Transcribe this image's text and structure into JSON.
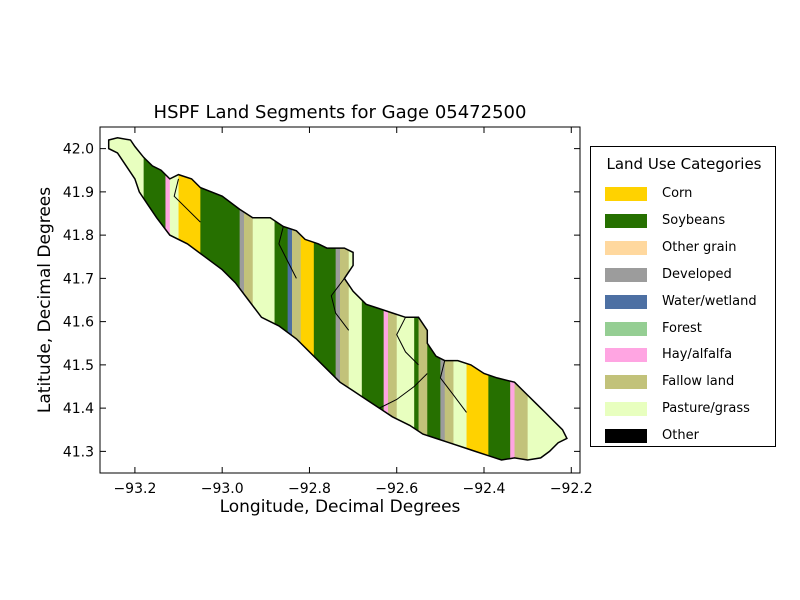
{
  "chart_data": {
    "type": "map",
    "title": "HSPF Land Segments for Gage 05472500",
    "xlabel": "Longitude, Decimal Degrees",
    "ylabel": "Latitude, Decimal Degrees",
    "xlim": [
      -93.28,
      -92.18
    ],
    "ylim": [
      41.25,
      42.05
    ],
    "x_ticks": [
      -93.2,
      -93.0,
      -92.8,
      -92.6,
      -92.4,
      -92.2
    ],
    "x_tick_labels": [
      "−93.2",
      "−93.0",
      "−92.8",
      "−92.6",
      "−92.4",
      "−92.2"
    ],
    "y_ticks": [
      41.3,
      41.4,
      41.5,
      41.6,
      41.7,
      41.8,
      41.9,
      42.0
    ],
    "y_tick_labels": [
      "41.3",
      "41.4",
      "41.5",
      "41.6",
      "41.7",
      "41.8",
      "41.9",
      "42.0"
    ],
    "legend": {
      "title": "Land Use Categories",
      "placement": "right",
      "entries": [
        {
          "label": "Corn",
          "color": "#ffd200"
        },
        {
          "label": "Soybeans",
          "color": "#267000"
        },
        {
          "label": "Other grain",
          "color": "#ffd89e"
        },
        {
          "label": "Developed",
          "color": "#9c9c9c"
        },
        {
          "label": "Water/wetland",
          "color": "#4d70a3"
        },
        {
          "label": "Forest",
          "color": "#95ce93"
        },
        {
          "label": "Hay/alfalfa",
          "color": "#ffa5e2"
        },
        {
          "label": "Fallow land",
          "color": "#c2c27a"
        },
        {
          "label": "Pasture/grass",
          "color": "#e8ffbf"
        },
        {
          "label": "Other",
          "color": "#000000"
        }
      ]
    },
    "segments": [
      {
        "category": "Pasture/grass",
        "lon": [
          -93.28,
          -93.18
        ]
      },
      {
        "category": "Soybeans",
        "lon": [
          -93.18,
          -93.13
        ]
      },
      {
        "category": "Hay/alfalfa",
        "lon": [
          -93.13,
          -93.12
        ]
      },
      {
        "category": "Pasture/grass",
        "lon": [
          -93.12,
          -93.1
        ]
      },
      {
        "category": "Corn",
        "lon": [
          -93.1,
          -93.05
        ]
      },
      {
        "category": "Soybeans",
        "lon": [
          -93.05,
          -92.96
        ]
      },
      {
        "category": "Developed",
        "lon": [
          -92.96,
          -92.95
        ]
      },
      {
        "category": "Fallow land",
        "lon": [
          -92.95,
          -92.93
        ]
      },
      {
        "category": "Pasture/grass",
        "lon": [
          -92.93,
          -92.88
        ]
      },
      {
        "category": "Soybeans",
        "lon": [
          -92.88,
          -92.85
        ]
      },
      {
        "category": "Water/wetland",
        "lon": [
          -92.85,
          -92.84
        ]
      },
      {
        "category": "Fallow land",
        "lon": [
          -92.84,
          -92.82
        ]
      },
      {
        "category": "Corn",
        "lon": [
          -92.82,
          -92.79
        ]
      },
      {
        "category": "Soybeans",
        "lon": [
          -92.79,
          -92.74
        ]
      },
      {
        "category": "Developed",
        "lon": [
          -92.74,
          -92.73
        ]
      },
      {
        "category": "Fallow land",
        "lon": [
          -92.73,
          -92.71
        ]
      },
      {
        "category": "Pasture/grass",
        "lon": [
          -92.71,
          -92.68
        ]
      },
      {
        "category": "Soybeans",
        "lon": [
          -92.68,
          -92.63
        ]
      },
      {
        "category": "Hay/alfalfa",
        "lon": [
          -92.63,
          -92.62
        ]
      },
      {
        "category": "Fallow land",
        "lon": [
          -92.62,
          -92.6
        ]
      },
      {
        "category": "Pasture/grass",
        "lon": [
          -92.6,
          -92.56
        ]
      },
      {
        "category": "Soybeans",
        "lon": [
          -92.56,
          -92.55
        ]
      },
      {
        "category": "Fallow land",
        "lon": [
          -92.55,
          -92.53
        ]
      },
      {
        "category": "Soybeans",
        "lon": [
          -92.53,
          -92.5
        ]
      },
      {
        "category": "Developed",
        "lon": [
          -92.5,
          -92.49
        ]
      },
      {
        "category": "Fallow land",
        "lon": [
          -92.49,
          -92.47
        ]
      },
      {
        "category": "Pasture/grass",
        "lon": [
          -92.47,
          -92.44
        ]
      },
      {
        "category": "Corn",
        "lon": [
          -92.44,
          -92.39
        ]
      },
      {
        "category": "Soybeans",
        "lon": [
          -92.39,
          -92.34
        ]
      },
      {
        "category": "Hay/alfalfa",
        "lon": [
          -92.34,
          -92.33
        ]
      },
      {
        "category": "Fallow land",
        "lon": [
          -92.33,
          -92.3
        ]
      },
      {
        "category": "Pasture/grass",
        "lon": [
          -92.3,
          -92.18
        ]
      }
    ],
    "outline": [
      [
        -93.26,
        42.02
      ],
      [
        -93.24,
        42.025
      ],
      [
        -93.21,
        42.02
      ],
      [
        -93.2,
        42.005
      ],
      [
        -93.18,
        41.98
      ],
      [
        -93.16,
        41.96
      ],
      [
        -93.14,
        41.95
      ],
      [
        -93.12,
        41.93
      ],
      [
        -93.1,
        41.94
      ],
      [
        -93.07,
        41.93
      ],
      [
        -93.05,
        41.91
      ],
      [
        -93.0,
        41.89
      ],
      [
        -92.96,
        41.86
      ],
      [
        -92.93,
        41.84
      ],
      [
        -92.89,
        41.84
      ],
      [
        -92.86,
        41.82
      ],
      [
        -92.83,
        41.81
      ],
      [
        -92.81,
        41.79
      ],
      [
        -92.78,
        41.78
      ],
      [
        -92.76,
        41.77
      ],
      [
        -92.72,
        41.77
      ],
      [
        -92.7,
        41.76
      ],
      [
        -92.7,
        41.73
      ],
      [
        -92.72,
        41.7
      ],
      [
        -92.7,
        41.67
      ],
      [
        -92.67,
        41.64
      ],
      [
        -92.64,
        41.63
      ],
      [
        -92.61,
        41.62
      ],
      [
        -92.58,
        41.61
      ],
      [
        -92.55,
        41.61
      ],
      [
        -92.53,
        41.58
      ],
      [
        -92.53,
        41.55
      ],
      [
        -92.51,
        41.52
      ],
      [
        -92.49,
        41.51
      ],
      [
        -92.46,
        41.51
      ],
      [
        -92.43,
        41.5
      ],
      [
        -92.4,
        41.48
      ],
      [
        -92.37,
        41.47
      ],
      [
        -92.33,
        41.46
      ],
      [
        -92.3,
        41.43
      ],
      [
        -92.28,
        41.41
      ],
      [
        -92.26,
        41.39
      ],
      [
        -92.24,
        41.37
      ],
      [
        -92.22,
        41.35
      ],
      [
        -92.21,
        41.33
      ],
      [
        -92.23,
        41.32
      ],
      [
        -92.25,
        41.3
      ],
      [
        -92.27,
        41.285
      ],
      [
        -92.3,
        41.28
      ],
      [
        -92.33,
        41.285
      ],
      [
        -92.36,
        41.28
      ],
      [
        -92.39,
        41.29
      ],
      [
        -92.42,
        41.3
      ],
      [
        -92.45,
        41.31
      ],
      [
        -92.48,
        41.32
      ],
      [
        -92.51,
        41.33
      ],
      [
        -92.54,
        41.34
      ],
      [
        -92.57,
        41.36
      ],
      [
        -92.61,
        41.38
      ],
      [
        -92.64,
        41.4
      ],
      [
        -92.67,
        41.42
      ],
      [
        -92.7,
        41.44
      ],
      [
        -92.73,
        41.46
      ],
      [
        -92.76,
        41.49
      ],
      [
        -92.79,
        41.52
      ],
      [
        -92.83,
        41.56
      ],
      [
        -92.87,
        41.59
      ],
      [
        -92.91,
        41.61
      ],
      [
        -92.94,
        41.65
      ],
      [
        -92.97,
        41.69
      ],
      [
        -93.0,
        41.72
      ],
      [
        -93.04,
        41.75
      ],
      [
        -93.08,
        41.78
      ],
      [
        -93.12,
        41.8
      ],
      [
        -93.15,
        41.84
      ],
      [
        -93.17,
        41.87
      ],
      [
        -93.19,
        41.9
      ],
      [
        -93.2,
        41.93
      ],
      [
        -93.22,
        41.96
      ],
      [
        -93.24,
        41.99
      ],
      [
        -93.26,
        42.0
      ]
    ]
  }
}
